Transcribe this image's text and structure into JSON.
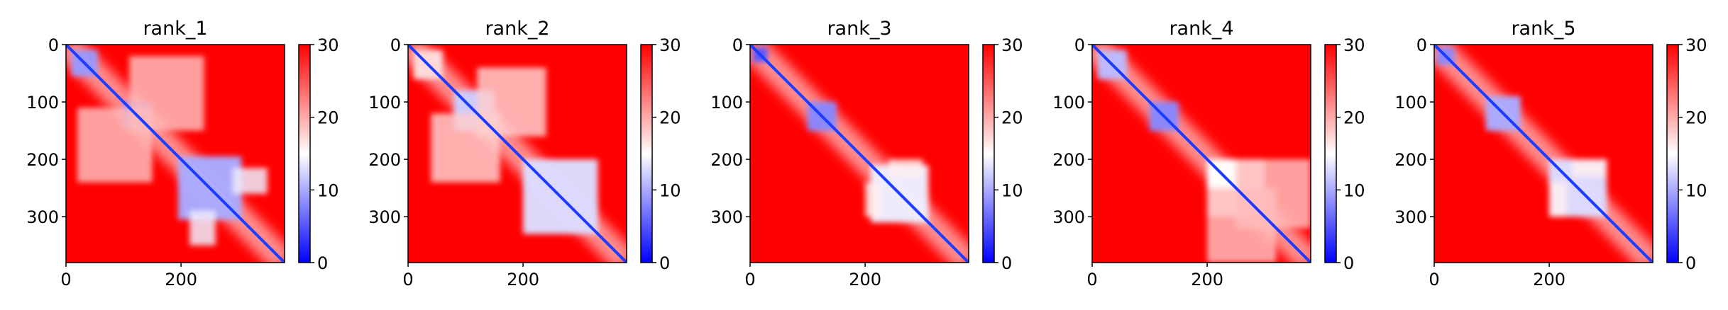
{
  "chart_data": [
    {
      "type": "heatmap",
      "title": "rank_1",
      "x_ticks": [
        0,
        200
      ],
      "y_ticks": [
        0,
        100,
        200,
        300
      ],
      "xlim": [
        0,
        380
      ],
      "ylim": [
        380,
        0
      ],
      "colorbar": {
        "ticks": [
          0,
          10,
          20,
          30
        ],
        "range": [
          0,
          30
        ],
        "colormap": [
          "#0000ff",
          "#ffffff",
          "#ff0000"
        ]
      },
      "blocks": [
        {
          "x": [
            10,
            55
          ],
          "y": [
            10,
            55
          ],
          "value": 9
        },
        {
          "x": [
            100,
            145
          ],
          "y": [
            100,
            145
          ],
          "value": 7
        },
        {
          "x": [
            195,
            305
          ],
          "y": [
            195,
            305
          ],
          "value": 10
        },
        {
          "x": [
            215,
            260
          ],
          "y": [
            290,
            350
          ],
          "value": 14
        },
        {
          "x": [
            110,
            240
          ],
          "y": [
            20,
            150
          ],
          "value": 19
        }
      ]
    },
    {
      "type": "heatmap",
      "title": "rank_2",
      "x_ticks": [
        0,
        200
      ],
      "y_ticks": [
        0,
        100,
        200,
        300
      ],
      "xlim": [
        0,
        380
      ],
      "ylim": [
        380,
        0
      ],
      "colorbar": {
        "ticks": [
          0,
          10,
          20,
          30
        ],
        "range": [
          0,
          30
        ],
        "colormap": [
          "#0000ff",
          "#ffffff",
          "#ff0000"
        ]
      },
      "blocks": [
        {
          "x": [
            10,
            60
          ],
          "y": [
            10,
            60
          ],
          "value": 17
        },
        {
          "x": [
            80,
            150
          ],
          "y": [
            80,
            150
          ],
          "value": 12
        },
        {
          "x": [
            200,
            330
          ],
          "y": [
            200,
            330
          ],
          "value": 13
        },
        {
          "x": [
            40,
            160
          ],
          "y": [
            120,
            240
          ],
          "value": 18
        }
      ]
    },
    {
      "type": "heatmap",
      "title": "rank_3",
      "x_ticks": [
        0,
        200
      ],
      "y_ticks": [
        0,
        100,
        200,
        300
      ],
      "xlim": [
        0,
        380
      ],
      "ylim": [
        380,
        0
      ],
      "colorbar": {
        "ticks": [
          0,
          10,
          20,
          30
        ],
        "range": [
          0,
          30
        ],
        "colormap": [
          "#0000ff",
          "#ffffff",
          "#ff0000"
        ]
      },
      "blocks": [
        {
          "x": [
            5,
            30
          ],
          "y": [
            5,
            30
          ],
          "value": 5
        },
        {
          "x": [
            100,
            150
          ],
          "y": [
            100,
            150
          ],
          "value": 8
        },
        {
          "x": [
            210,
            310
          ],
          "y": [
            210,
            310
          ],
          "value": 14
        },
        {
          "x": [
            200,
            230
          ],
          "y": [
            240,
            300
          ],
          "value": 16
        }
      ]
    },
    {
      "type": "heatmap",
      "title": "rank_4",
      "x_ticks": [
        0,
        200
      ],
      "y_ticks": [
        0,
        100,
        200,
        300
      ],
      "xlim": [
        0,
        380
      ],
      "ylim": [
        380,
        0
      ],
      "colorbar": {
        "ticks": [
          0,
          10,
          20,
          30
        ],
        "range": [
          0,
          30
        ],
        "colormap": [
          "#0000ff",
          "#ffffff",
          "#ff0000"
        ]
      },
      "blocks": [
        {
          "x": [
            10,
            60
          ],
          "y": [
            10,
            60
          ],
          "value": 11
        },
        {
          "x": [
            100,
            150
          ],
          "y": [
            100,
            150
          ],
          "value": 8
        },
        {
          "x": [
            200,
            300
          ],
          "y": [
            200,
            300
          ],
          "value": 15
        },
        {
          "x": [
            200,
            320
          ],
          "y": [
            250,
            380
          ],
          "value": 19
        }
      ]
    },
    {
      "type": "heatmap",
      "title": "rank_5",
      "x_ticks": [
        0,
        200
      ],
      "y_ticks": [
        0,
        100,
        200,
        300
      ],
      "xlim": [
        0,
        380
      ],
      "ylim": [
        380,
        0
      ],
      "colorbar": {
        "ticks": [
          0,
          10,
          20,
          30
        ],
        "range": [
          0,
          30
        ],
        "colormap": [
          "#0000ff",
          "#ffffff",
          "#ff0000"
        ]
      },
      "blocks": [
        {
          "x": [
            5,
            35
          ],
          "y": [
            5,
            35
          ],
          "value": 8
        },
        {
          "x": [
            90,
            150
          ],
          "y": [
            90,
            150
          ],
          "value": 10
        },
        {
          "x": [
            200,
            300
          ],
          "y": [
            200,
            300
          ],
          "value": 13
        },
        {
          "x": [
            200,
            230
          ],
          "y": [
            240,
            300
          ],
          "value": 16
        }
      ]
    }
  ],
  "colors": {
    "low": "#0000ff",
    "mid": "#ffffff",
    "high": "#ff0000",
    "diagonal": "#1c3cff"
  }
}
